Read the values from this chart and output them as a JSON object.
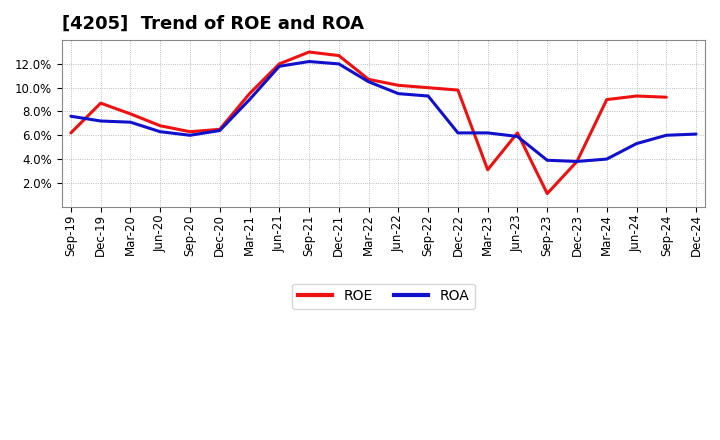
{
  "title": "[4205]  Trend of ROE and ROA",
  "x_labels": [
    "Sep-19",
    "Dec-19",
    "Mar-20",
    "Jun-20",
    "Sep-20",
    "Dec-20",
    "Mar-21",
    "Jun-21",
    "Sep-21",
    "Dec-21",
    "Mar-22",
    "Jun-22",
    "Sep-22",
    "Dec-22",
    "Mar-23",
    "Jun-23",
    "Sep-23",
    "Dec-23",
    "Mar-24",
    "Jun-24",
    "Sep-24",
    "Dec-24"
  ],
  "roe": [
    6.2,
    8.7,
    7.8,
    6.8,
    6.3,
    6.5,
    9.5,
    12.0,
    13.0,
    12.7,
    10.7,
    10.2,
    10.0,
    9.8,
    3.1,
    6.2,
    1.1,
    3.8,
    9.0,
    9.3,
    9.2,
    null
  ],
  "roa": [
    7.6,
    7.2,
    7.1,
    6.3,
    6.0,
    6.4,
    9.0,
    11.8,
    12.2,
    12.0,
    10.5,
    9.5,
    9.3,
    6.2,
    6.2,
    5.9,
    3.9,
    3.8,
    4.0,
    5.3,
    6.0,
    6.1
  ],
  "roe_color": "#EE1111",
  "roa_color": "#1111CC",
  "bg_color": "#FFFFFF",
  "plot_bg_color": "#FFFFFF",
  "grid_color": "#AAAAAA",
  "ylim": [
    0,
    14
  ],
  "yticks": [
    2,
    4,
    6,
    8,
    10,
    12
  ],
  "line_width": 2.2,
  "title_fontsize": 13,
  "tick_fontsize": 8.5,
  "legend_fontsize": 10
}
